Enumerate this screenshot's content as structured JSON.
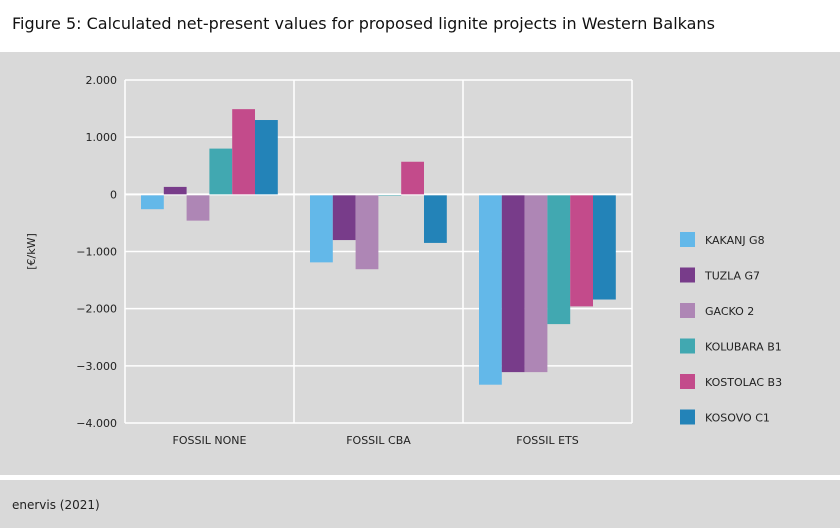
{
  "title": "Figure 5: Calculated net-present values for proposed lignite projects in Western Balkans",
  "source": "enervis (2021)",
  "chart_data": {
    "type": "bar",
    "ylabel": "[€/kW]",
    "xlabel": "",
    "ylim": [
      -4000,
      2000
    ],
    "yticks": [
      2000,
      1000,
      0,
      -1000,
      -2000,
      -3000,
      -4000
    ],
    "ytick_labels": [
      "2.000",
      "1.000",
      "0",
      "−1.000",
      "−2.000",
      "−3.000",
      "−4.000"
    ],
    "grid": true,
    "legend_position": "right",
    "categories": [
      "FOSSIL NONE",
      "FOSSIL CBA",
      "FOSSIL ETS"
    ],
    "series": [
      {
        "name": "KAKANJ G8",
        "color": "#63b8e9",
        "values": [
          -260,
          -1190,
          -3330
        ]
      },
      {
        "name": "TUZLA G7",
        "color": "#783c8a",
        "values": [
          130,
          -800,
          -3110
        ]
      },
      {
        "name": "GACKO 2",
        "color": "#ae86b5",
        "values": [
          -460,
          -1310,
          -3110
        ]
      },
      {
        "name": "KOLUBARA B1",
        "color": "#41a8b1",
        "values": [
          800,
          -10,
          -2270
        ]
      },
      {
        "name": "KOSTOLAC B3",
        "color": "#c34b8b",
        "values": [
          1490,
          570,
          -1960
        ]
      },
      {
        "name": "KOSOVO C1",
        "color": "#2383b8",
        "values": [
          1300,
          -850,
          -1840
        ]
      }
    ]
  }
}
